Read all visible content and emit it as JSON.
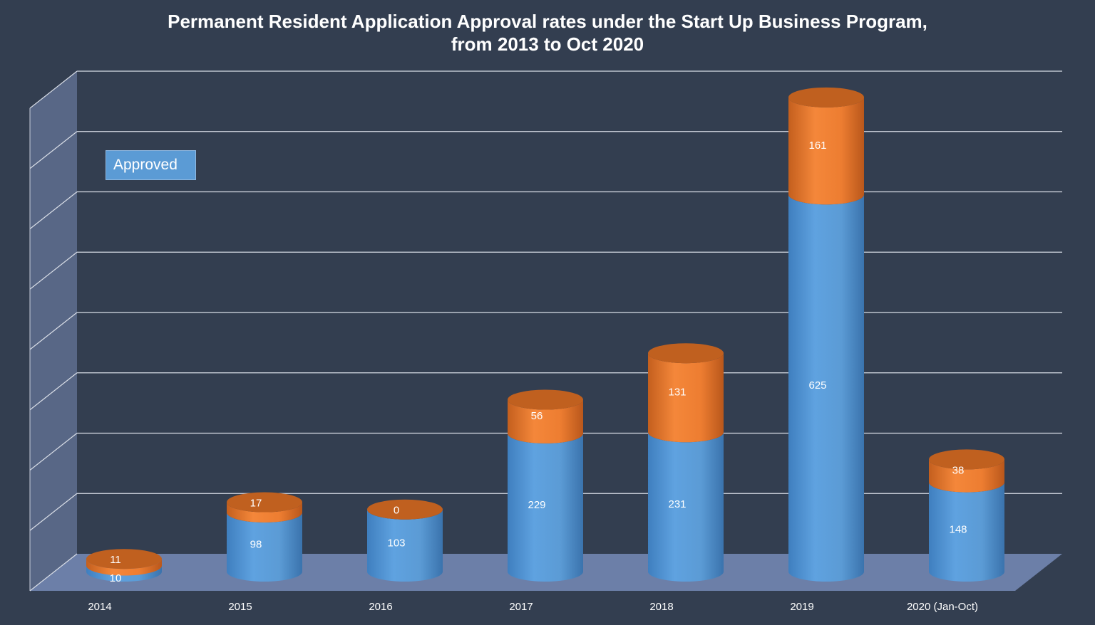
{
  "chart_data": {
    "type": "bar",
    "stacked": true,
    "three_d": true,
    "title": "Permanent Resident Application Approval rates under the Start Up Business Program,",
    "subtitle": "from 2013 to Oct 2020",
    "categories": [
      "2014",
      "2015",
      "2016",
      "2017",
      "2018",
      "2019",
      "2020 (Jan-Oct)"
    ],
    "series": [
      {
        "name": "Approved",
        "values": [
          10,
          98,
          103,
          229,
          231,
          625,
          148
        ],
        "color": "#5b9bd5"
      },
      {
        "values": [
          11,
          17,
          0,
          56,
          131,
          161,
          38
        ],
        "color": "#ed7d31"
      }
    ],
    "ylim": [
      0,
      800
    ],
    "grid": true,
    "legend_position": "top-left",
    "background_color": "#333e50"
  }
}
